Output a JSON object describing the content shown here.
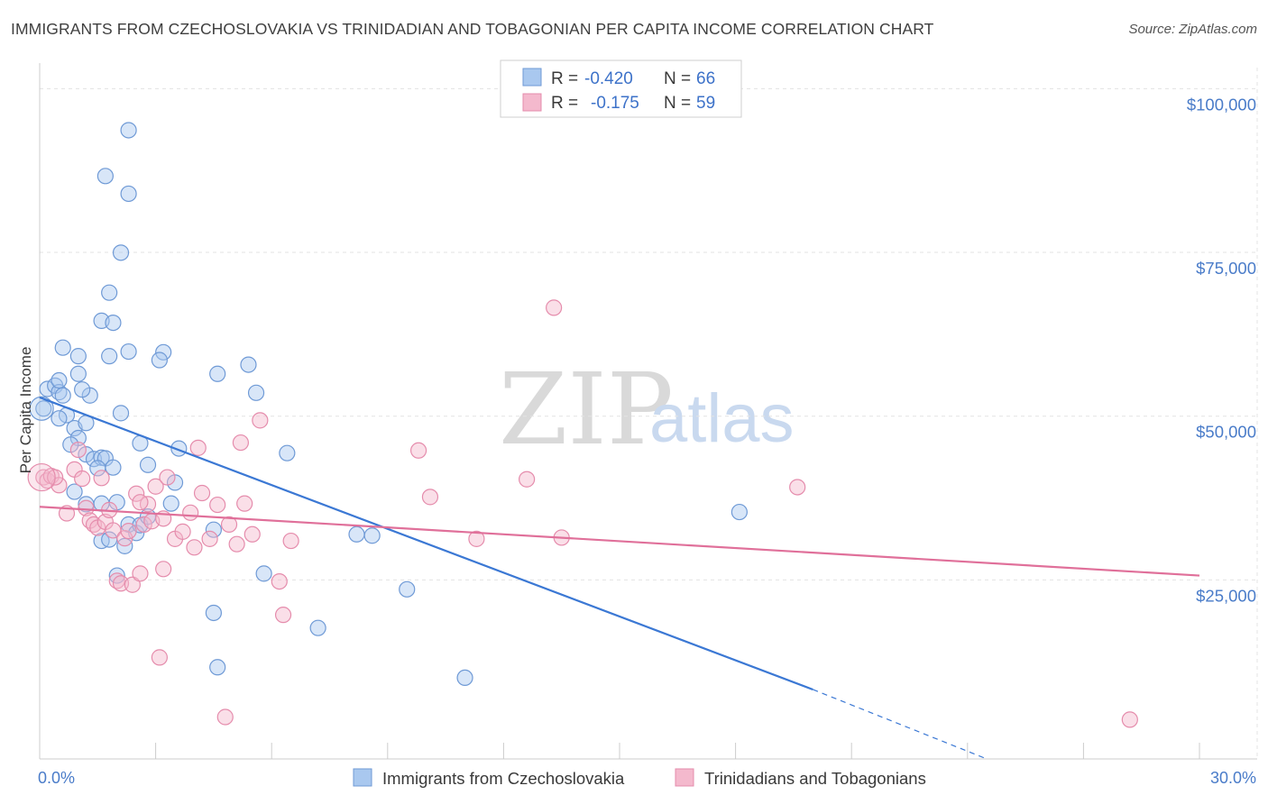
{
  "title": "IMMIGRANTS FROM CZECHOSLOVAKIA VS TRINIDADIAN AND TOBAGONIAN PER CAPITA INCOME CORRELATION CHART",
  "source": "Source: ZipAtlas.com",
  "watermark": {
    "zip": "ZIP",
    "atlas": "atlas"
  },
  "legend": {
    "r_label": "R =",
    "n_label": "N =",
    "series1": {
      "r": "-0.420",
      "n": "66"
    },
    "series2": {
      "r": "-0.175",
      "n": "59"
    }
  },
  "colors": {
    "blue": "#3b78d4",
    "pink": "#e0709a",
    "blue_fill": "#a9c8ef",
    "pink_fill": "#f4b9cd"
  },
  "chart_data": {
    "type": "scatter",
    "title": "IMMIGRANTS FROM CZECHOSLOVAKIA VS TRINIDADIAN AND TOBAGONIAN PER CAPITA INCOME CORRELATION CHART",
    "xlabel": "",
    "ylabel": "Per Capita Income",
    "xlim": [
      0,
      30
    ],
    "ylim": [
      0,
      105000
    ],
    "x_tick_labels": [
      "0.0%",
      "30.0%"
    ],
    "y_ticks": [
      25000,
      50000,
      75000,
      100000
    ],
    "y_tick_labels": [
      "$25,000",
      "$50,000",
      "$75,000",
      "$100,000"
    ],
    "grid": true,
    "legend_position": "top-center",
    "series": [
      {
        "name": "Immigrants from Czechoslovakia",
        "color": "#3b78d4",
        "trend": {
          "x": [
            0,
            20
          ],
          "y": [
            55200,
            10600
          ],
          "dashed_to": [
            24.5,
            0
          ]
        },
        "points": [
          [
            0.1,
            53500
          ],
          [
            0.2,
            56500
          ],
          [
            0.4,
            57000
          ],
          [
            0.5,
            56000
          ],
          [
            0.6,
            55500
          ],
          [
            0.7,
            52500
          ],
          [
            0.5,
            52000
          ],
          [
            0.9,
            50500
          ],
          [
            1.0,
            49000
          ],
          [
            1.2,
            46500
          ],
          [
            1.4,
            45800
          ],
          [
            1.6,
            46000
          ],
          [
            1.7,
            45900
          ],
          [
            1.8,
            61500
          ],
          [
            0.6,
            62800
          ],
          [
            1.0,
            61500
          ],
          [
            1.0,
            58800
          ],
          [
            1.3,
            55500
          ],
          [
            1.2,
            51300
          ],
          [
            0.9,
            40800
          ],
          [
            1.2,
            38900
          ],
          [
            1.6,
            39000
          ],
          [
            1.9,
            44500
          ],
          [
            2.0,
            39200
          ],
          [
            1.6,
            33300
          ],
          [
            1.8,
            33500
          ],
          [
            2.2,
            32500
          ],
          [
            2.0,
            28000
          ],
          [
            2.3,
            35800
          ],
          [
            2.5,
            34500
          ],
          [
            2.6,
            35700
          ],
          [
            2.8,
            37000
          ],
          [
            2.6,
            48200
          ],
          [
            2.8,
            44900
          ],
          [
            3.5,
            42200
          ],
          [
            3.4,
            39000
          ],
          [
            3.6,
            47400
          ],
          [
            4.5,
            35000
          ],
          [
            4.5,
            22300
          ],
          [
            4.6,
            14000
          ],
          [
            4.6,
            58800
          ],
          [
            5.4,
            60200
          ],
          [
            5.6,
            55900
          ],
          [
            5.8,
            28300
          ],
          [
            6.4,
            46700
          ],
          [
            7.2,
            20000
          ],
          [
            8.2,
            34300
          ],
          [
            8.6,
            34100
          ],
          [
            9.5,
            25900
          ],
          [
            11.0,
            12400
          ],
          [
            18.1,
            37700
          ],
          [
            1.6,
            66900
          ],
          [
            1.9,
            66600
          ],
          [
            1.8,
            71200
          ],
          [
            2.1,
            77300
          ],
          [
            2.3,
            96000
          ],
          [
            1.7,
            89000
          ],
          [
            2.3,
            86300
          ],
          [
            2.3,
            62200
          ],
          [
            3.2,
            62100
          ],
          [
            3.1,
            60900
          ],
          [
            2.1,
            52800
          ],
          [
            0.5,
            57800
          ],
          [
            1.1,
            56400
          ],
          [
            0.8,
            48000
          ],
          [
            1.5,
            44400
          ]
        ]
      },
      {
        "name": "Trinidadians and Tobagonians",
        "color": "#e0709a",
        "trend": {
          "x": [
            0,
            30
          ],
          "y": [
            38500,
            28000
          ]
        },
        "points": [
          [
            0.1,
            43000
          ],
          [
            0.2,
            42500
          ],
          [
            0.3,
            43200
          ],
          [
            0.5,
            41800
          ],
          [
            0.7,
            37500
          ],
          [
            0.9,
            44200
          ],
          [
            1.0,
            47200
          ],
          [
            1.1,
            42800
          ],
          [
            1.2,
            38300
          ],
          [
            1.3,
            36400
          ],
          [
            1.4,
            35800
          ],
          [
            1.5,
            35300
          ],
          [
            1.6,
            42900
          ],
          [
            1.7,
            36200
          ],
          [
            1.8,
            38000
          ],
          [
            1.9,
            34900
          ],
          [
            2.0,
            27200
          ],
          [
            2.1,
            26800
          ],
          [
            2.2,
            33700
          ],
          [
            2.3,
            34800
          ],
          [
            2.4,
            26600
          ],
          [
            2.5,
            40500
          ],
          [
            2.6,
            28300
          ],
          [
            2.7,
            35800
          ],
          [
            2.8,
            38900
          ],
          [
            2.9,
            36300
          ],
          [
            3.0,
            41600
          ],
          [
            3.1,
            15500
          ],
          [
            3.2,
            29000
          ],
          [
            3.3,
            43000
          ],
          [
            3.5,
            33600
          ],
          [
            3.7,
            34700
          ],
          [
            3.9,
            37600
          ],
          [
            4.0,
            32300
          ],
          [
            4.1,
            47500
          ],
          [
            4.2,
            40600
          ],
          [
            4.4,
            33600
          ],
          [
            4.6,
            38800
          ],
          [
            4.8,
            6400
          ],
          [
            4.9,
            35800
          ],
          [
            5.1,
            32800
          ],
          [
            5.2,
            48300
          ],
          [
            5.3,
            39000
          ],
          [
            5.5,
            34300
          ],
          [
            5.7,
            51700
          ],
          [
            6.2,
            27100
          ],
          [
            6.3,
            22000
          ],
          [
            6.5,
            33300
          ],
          [
            9.8,
            47100
          ],
          [
            10.1,
            40000
          ],
          [
            11.3,
            33600
          ],
          [
            12.6,
            42700
          ],
          [
            13.3,
            68900
          ],
          [
            13.5,
            33800
          ],
          [
            19.6,
            41500
          ],
          [
            28.2,
            6000
          ],
          [
            0.4,
            43000
          ],
          [
            2.6,
            39200
          ],
          [
            3.2,
            36700
          ]
        ]
      }
    ]
  },
  "bottom_legend": {
    "series1": "Immigrants from Czechoslovakia",
    "series2": "Trinidadians and Tobagonians"
  }
}
